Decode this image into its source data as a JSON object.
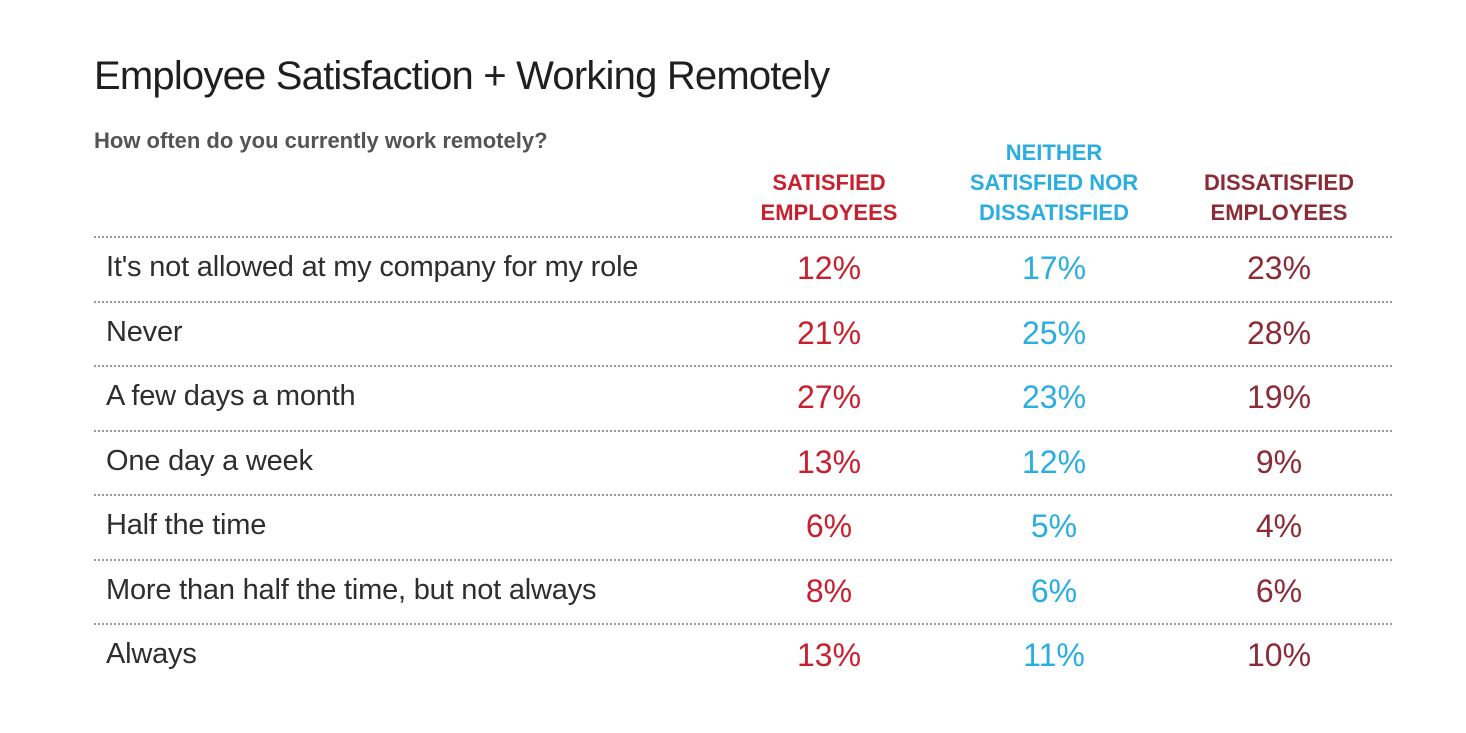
{
  "chart_data": {
    "type": "table",
    "title": "Employee Satisfaction + Working Remotely",
    "subtitle": "How often do you currently work remotely?",
    "columns": [
      {
        "name": "SATISFIED\nEMPLOYEES",
        "color": "#c8202f"
      },
      {
        "name": "NEITHER\nSATISFIED NOR\nDISSATISFIED",
        "color": "#2aaee2"
      },
      {
        "name": "DISSATISFIED\nEMPLOYEES",
        "color": "#8b2b36"
      }
    ],
    "rows": [
      {
        "label": "It's not allowed at my company for my role",
        "values": [
          "12%",
          "17%",
          "23%"
        ]
      },
      {
        "label": "Never",
        "values": [
          "21%",
          "25%",
          "28%"
        ]
      },
      {
        "label": "A few days a month",
        "values": [
          "27%",
          "23%",
          "19%"
        ]
      },
      {
        "label": "One day a week",
        "values": [
          "13%",
          "12%",
          "9%"
        ]
      },
      {
        "label": "Half the time",
        "values": [
          "6%",
          "5%",
          "4%"
        ]
      },
      {
        "label": "More than half the time, but not always",
        "values": [
          "8%",
          "6%",
          "6%"
        ]
      },
      {
        "label": "Always",
        "values": [
          "13%",
          "11%",
          "10%"
        ]
      }
    ]
  }
}
